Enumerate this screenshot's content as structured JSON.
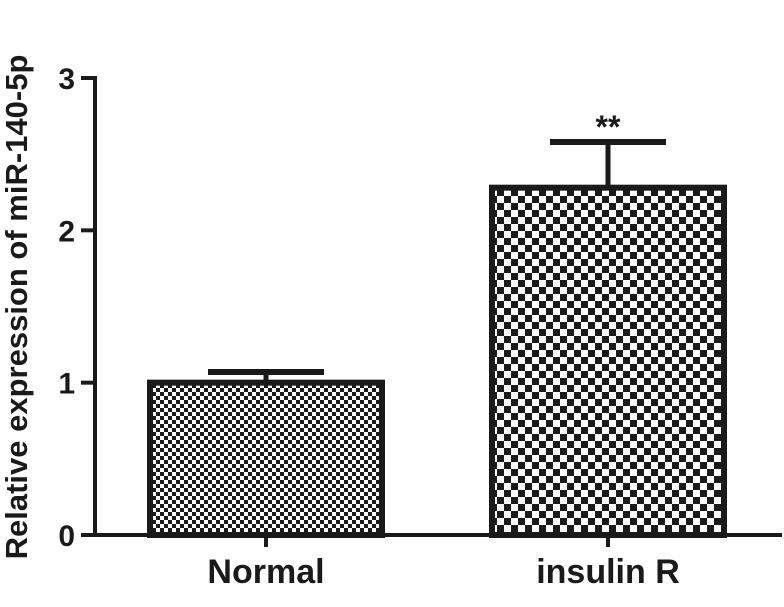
{
  "chart_data": {
    "type": "bar",
    "categories": [
      "Normal",
      "insulin R"
    ],
    "values": [
      1.0,
      2.28
    ],
    "errors": [
      0.07,
      0.3
    ],
    "annotations": [
      "",
      "**"
    ],
    "xlabel": "",
    "ylabel": "Relative expression of miR-140-5p",
    "ylim": [
      0,
      3
    ],
    "yticks": [
      0,
      1,
      2,
      3
    ],
    "grid": false,
    "patterns": [
      "fine-checker",
      "coarse-checker"
    ],
    "colors": {
      "bar_edge": "#1a1a1a",
      "fill_dark": "#1a1a1a",
      "fill_light": "#ffffff"
    }
  }
}
